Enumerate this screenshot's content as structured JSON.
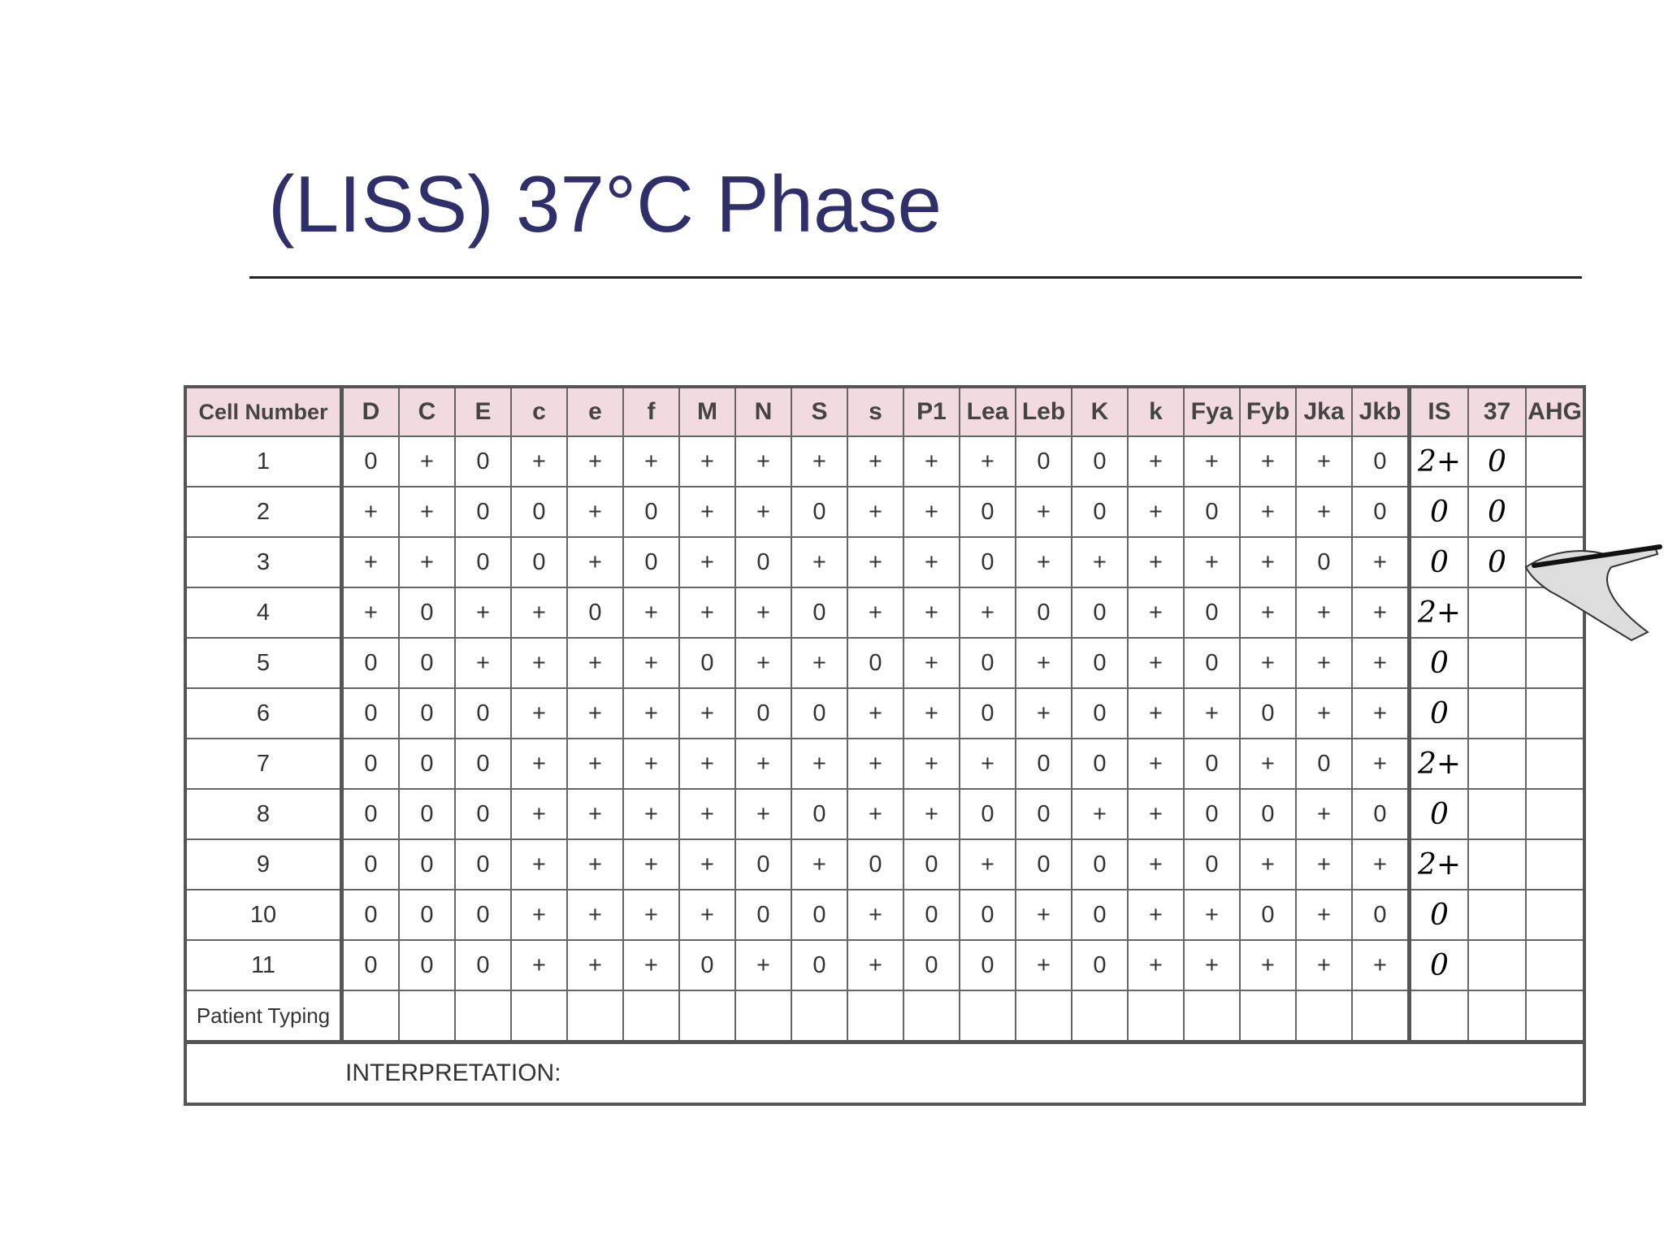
{
  "title": "(LISS) 37°C Phase",
  "table": {
    "header_cell": "Cell Number",
    "antigens": [
      "D",
      "C",
      "E",
      "c",
      "e",
      "f",
      "M",
      "N",
      "S",
      "s",
      "P1",
      "Lea",
      "Leb",
      "K",
      "k",
      "Fya",
      "Fyb",
      "Jka",
      "Jkb"
    ],
    "phases": [
      "IS",
      "37",
      "AHG"
    ],
    "rows": [
      {
        "cell": "1",
        "typing": [
          "0",
          "+",
          "0",
          "+",
          "+",
          "+",
          "+",
          "+",
          "+",
          "+",
          "+",
          "+",
          "0",
          "0",
          "+",
          "+",
          "+",
          "+",
          "0"
        ],
        "results": [
          "2+",
          "0"
        ]
      },
      {
        "cell": "2",
        "typing": [
          "+",
          "+",
          "0",
          "0",
          "+",
          "0",
          "+",
          "+",
          "0",
          "+",
          "+",
          "0",
          "+",
          "0",
          "+",
          "0",
          "+",
          "+",
          "0"
        ],
        "results": [
          "0",
          "0"
        ]
      },
      {
        "cell": "3",
        "typing": [
          "+",
          "+",
          "0",
          "0",
          "+",
          "0",
          "+",
          "0",
          "+",
          "+",
          "+",
          "0",
          "+",
          "+",
          "+",
          "+",
          "+",
          "0",
          "+"
        ],
        "results": [
          "0",
          "0"
        ]
      },
      {
        "cell": "4",
        "typing": [
          "+",
          "0",
          "+",
          "+",
          "0",
          "+",
          "+",
          "+",
          "0",
          "+",
          "+",
          "+",
          "0",
          "0",
          "+",
          "0",
          "+",
          "+",
          "+"
        ],
        "results": [
          "2+"
        ]
      },
      {
        "cell": "5",
        "typing": [
          "0",
          "0",
          "+",
          "+",
          "+",
          "+",
          "0",
          "+",
          "+",
          "0",
          "+",
          "0",
          "+",
          "0",
          "+",
          "0",
          "+",
          "+",
          "+"
        ],
        "results": [
          "0"
        ]
      },
      {
        "cell": "6",
        "typing": [
          "0",
          "0",
          "0",
          "+",
          "+",
          "+",
          "+",
          "0",
          "0",
          "+",
          "+",
          "0",
          "+",
          "0",
          "+",
          "+",
          "0",
          "+",
          "+"
        ],
        "results": [
          "0"
        ]
      },
      {
        "cell": "7",
        "typing": [
          "0",
          "0",
          "0",
          "+",
          "+",
          "+",
          "+",
          "+",
          "+",
          "+",
          "+",
          "+",
          "0",
          "0",
          "+",
          "0",
          "+",
          "0",
          "+"
        ],
        "results": [
          "2+"
        ]
      },
      {
        "cell": "8",
        "typing": [
          "0",
          "0",
          "0",
          "+",
          "+",
          "+",
          "+",
          "+",
          "0",
          "+",
          "+",
          "0",
          "0",
          "+",
          "+",
          "0",
          "0",
          "+",
          "0"
        ],
        "results": [
          "0"
        ]
      },
      {
        "cell": "9",
        "typing": [
          "0",
          "0",
          "0",
          "+",
          "+",
          "+",
          "+",
          "0",
          "+",
          "0",
          "0",
          "+",
          "0",
          "0",
          "+",
          "0",
          "+",
          "+",
          "+"
        ],
        "results": [
          "2+"
        ]
      },
      {
        "cell": "10",
        "typing": [
          "0",
          "0",
          "0",
          "+",
          "+",
          "+",
          "+",
          "0",
          "0",
          "+",
          "0",
          "0",
          "+",
          "0",
          "+",
          "+",
          "0",
          "+",
          "0"
        ],
        "results": [
          "0"
        ]
      },
      {
        "cell": "11",
        "typing": [
          "0",
          "0",
          "0",
          "+",
          "+",
          "+",
          "0",
          "+",
          "0",
          "+",
          "0",
          "0",
          "+",
          "0",
          "+",
          "+",
          "+",
          "+",
          "+"
        ],
        "results": [
          "0"
        ]
      }
    ],
    "patient_typing": "Patient Typing",
    "interpretation": "INTERPRETATION:"
  }
}
